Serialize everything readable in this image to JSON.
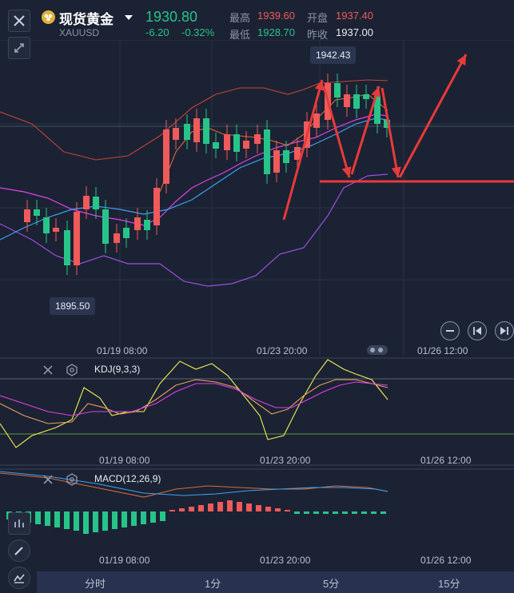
{
  "header": {
    "title": "现货黄金",
    "symbol": "XAUUSD",
    "price": "1930.80",
    "change": "-6.20",
    "change_pct": "-0.32%",
    "high_label": "最高",
    "high": "1939.60",
    "low_label": "最低",
    "low": "1928.70",
    "open_label": "开盘",
    "open": "1937.40",
    "prev_close_label": "昨收",
    "prev_close": "1937.00"
  },
  "chart": {
    "high_tag": "1942.43",
    "low_tag": "1895.50",
    "time_labels": [
      "01/19 08:00",
      "01/23 20:00",
      "01/26 12:00"
    ]
  },
  "kdj": {
    "label": "KDJ(9,3,3)"
  },
  "macd": {
    "label": "MACD(12,26,9)"
  },
  "tabs": [
    "分时",
    "1分",
    "5分",
    "15分"
  ],
  "colors": {
    "up": "#ef5a5a",
    "down": "#27c48a",
    "bg": "#1b2233",
    "ma_pink": "#e040e8",
    "ma_blue": "#3ea0f0",
    "k_yellow": "#f0f050"
  },
  "icons": [
    "close-icon",
    "coin-icon",
    "caret-down-icon",
    "collapse-icon",
    "eye-icon",
    "minus-icon",
    "prev-icon",
    "next-icon",
    "pencil-icon",
    "indicator-icon"
  ]
}
